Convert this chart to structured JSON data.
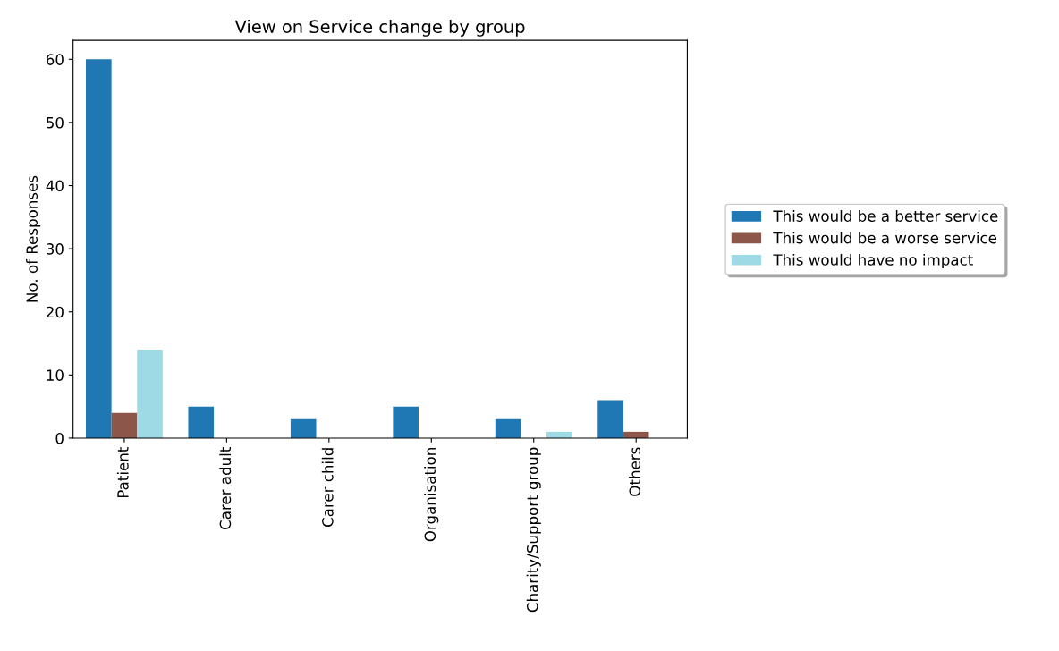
{
  "chart_data": {
    "type": "bar",
    "title": "View on Service change by group",
    "ylabel": "No. of Responses",
    "categories": [
      "Patient",
      "Carer adult",
      "Carer child",
      "Organisation",
      "Charity/Support group",
      "Others"
    ],
    "series": [
      {
        "name": "This would be a better service",
        "color": "#1f77b4",
        "values": [
          60,
          5,
          3,
          5,
          3,
          6
        ]
      },
      {
        "name": "This would be a worse service",
        "color": "#8c564b",
        "values": [
          4,
          0,
          0,
          0,
          0,
          1
        ]
      },
      {
        "name": "This would have no impact",
        "color": "#9edae5",
        "values": [
          14,
          0,
          0,
          0,
          1,
          0
        ]
      }
    ],
    "ylim": [
      0,
      63
    ],
    "yticks": [
      0,
      10,
      20,
      30,
      40,
      50,
      60
    ],
    "grid": false,
    "legend": "right"
  }
}
